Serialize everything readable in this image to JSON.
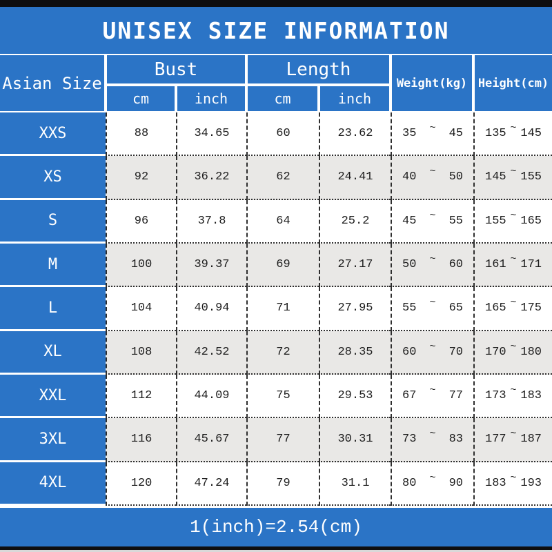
{
  "header": {
    "asian_size": "Asian Size",
    "bust": "Bust",
    "length": "Length",
    "weight": "Weight(kg)",
    "height": "Height(cm)",
    "cm": "cm",
    "inch": "inch",
    "tilde": "~"
  },
  "colors": {
    "blue": "#2b74c6",
    "alt_row": "#e9e8e6",
    "dotted_border": "#2e2e2e",
    "black_bar": "#0e0e10",
    "text_on_blue": "#ffffff",
    "data_text": "#1c1c1c"
  },
  "chart_data": {
    "type": "table",
    "title": "UNISEX SIZE INFORMATION",
    "columns": [
      "Asian Size",
      "Bust cm",
      "Bust inch",
      "Length cm",
      "Length inch",
      "Weight(kg)",
      "Height(cm)"
    ],
    "rows": [
      {
        "size": "XXS",
        "bust_cm": "88",
        "bust_inch": "34.65",
        "length_cm": "60",
        "length_inch": "23.62",
        "weight_min": "35",
        "weight_max": "45",
        "height_min": "135",
        "height_max": "145"
      },
      {
        "size": "XS",
        "bust_cm": "92",
        "bust_inch": "36.22",
        "length_cm": "62",
        "length_inch": "24.41",
        "weight_min": "40",
        "weight_max": "50",
        "height_min": "145",
        "height_max": "155"
      },
      {
        "size": "S",
        "bust_cm": "96",
        "bust_inch": "37.8",
        "length_cm": "64",
        "length_inch": "25.2",
        "weight_min": "45",
        "weight_max": "55",
        "height_min": "155",
        "height_max": "165"
      },
      {
        "size": "M",
        "bust_cm": "100",
        "bust_inch": "39.37",
        "length_cm": "69",
        "length_inch": "27.17",
        "weight_min": "50",
        "weight_max": "60",
        "height_min": "161",
        "height_max": "171"
      },
      {
        "size": "L",
        "bust_cm": "104",
        "bust_inch": "40.94",
        "length_cm": "71",
        "length_inch": "27.95",
        "weight_min": "55",
        "weight_max": "65",
        "height_min": "165",
        "height_max": "175"
      },
      {
        "size": "XL",
        "bust_cm": "108",
        "bust_inch": "42.52",
        "length_cm": "72",
        "length_inch": "28.35",
        "weight_min": "60",
        "weight_max": "70",
        "height_min": "170",
        "height_max": "180"
      },
      {
        "size": "XXL",
        "bust_cm": "112",
        "bust_inch": "44.09",
        "length_cm": "75",
        "length_inch": "29.53",
        "weight_min": "67",
        "weight_max": "77",
        "height_min": "173",
        "height_max": "183"
      },
      {
        "size": "3XL",
        "bust_cm": "116",
        "bust_inch": "45.67",
        "length_cm": "77",
        "length_inch": "30.31",
        "weight_min": "73",
        "weight_max": "83",
        "height_min": "177",
        "height_max": "187"
      },
      {
        "size": "4XL",
        "bust_cm": "120",
        "bust_inch": "47.24",
        "length_cm": "79",
        "length_inch": "31.1",
        "weight_min": "80",
        "weight_max": "90",
        "height_min": "183",
        "height_max": "193"
      }
    ],
    "footnote": "1(inch)=2.54(cm)"
  }
}
